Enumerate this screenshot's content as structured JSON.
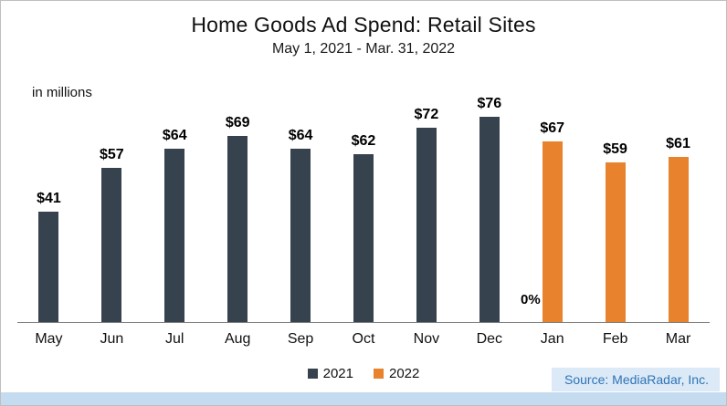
{
  "title": "Home Goods Ad Spend: Retail Sites",
  "subtitle": "May 1, 2021 - Mar. 31, 2022",
  "units_label": "in millions",
  "source": "Source: MediaRadar, Inc.",
  "colors": {
    "year_2021": "#36424e",
    "year_2022": "#e8822d",
    "source_text": "#2e74b5",
    "source_bg": "#dce9f7",
    "bottom_strip": "#c5dcf0",
    "axis_line": "#7f7f7f"
  },
  "legend": [
    {
      "label": "2021",
      "color": "#36424e"
    },
    {
      "label": "2022",
      "color": "#e8822d"
    }
  ],
  "chart_data": {
    "type": "bar",
    "title": "Home Goods Ad Spend: Retail Sites",
    "subtitle": "May 1, 2021 - Mar. 31, 2022",
    "ylabel": "in millions",
    "ylim": [
      0,
      80
    ],
    "grid": false,
    "legend_position": "bottom",
    "categories": [
      "May",
      "Jun",
      "Jul",
      "Aug",
      "Sep",
      "Oct",
      "Nov",
      "Dec",
      "Jan",
      "Feb",
      "Mar"
    ],
    "series": [
      {
        "name": "2021",
        "color": "#36424e",
        "values": [
          41,
          57,
          64,
          69,
          64,
          62,
          72,
          76,
          null,
          null,
          null
        ]
      },
      {
        "name": "2022",
        "color": "#e8822d",
        "values": [
          null,
          null,
          null,
          null,
          null,
          null,
          null,
          null,
          67,
          59,
          61
        ]
      }
    ],
    "points": [
      {
        "month": "May",
        "value": 41,
        "label": "$41",
        "year": "2021"
      },
      {
        "month": "Jun",
        "value": 57,
        "label": "$57",
        "year": "2021"
      },
      {
        "month": "Jul",
        "value": 64,
        "label": "$64",
        "year": "2021"
      },
      {
        "month": "Aug",
        "value": 69,
        "label": "$69",
        "year": "2021"
      },
      {
        "month": "Sep",
        "value": 64,
        "label": "$64",
        "year": "2021"
      },
      {
        "month": "Oct",
        "value": 62,
        "label": "$62",
        "year": "2021"
      },
      {
        "month": "Nov",
        "value": 72,
        "label": "$72",
        "year": "2021"
      },
      {
        "month": "Dec",
        "value": 76,
        "label": "$76",
        "year": "2021"
      },
      {
        "month": "Jan",
        "value": 67,
        "label": "$67",
        "year": "2022"
      },
      {
        "month": "Feb",
        "value": 59,
        "label": "$59",
        "year": "2022"
      },
      {
        "month": "Mar",
        "value": 61,
        "label": "$61",
        "year": "2022"
      }
    ],
    "annotations": [
      {
        "text": "0%",
        "month": "Jan",
        "position": "left-of-bar-near-baseline"
      }
    ]
  }
}
